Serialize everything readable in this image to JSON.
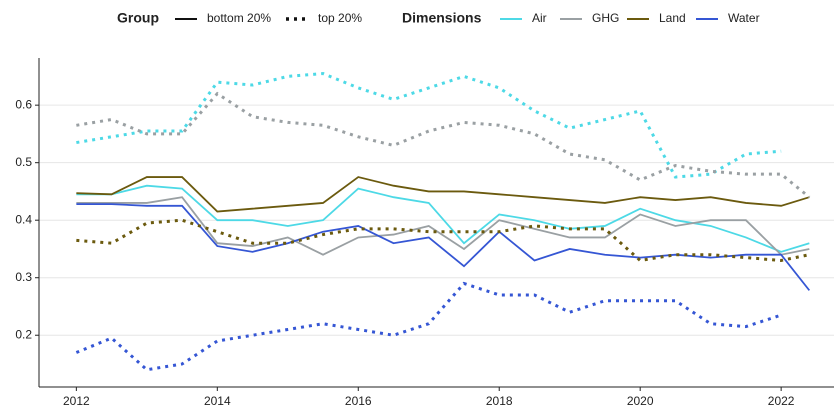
{
  "chart_data": {
    "type": "line",
    "legend_titles": {
      "group": "Group",
      "dimensions": "Dimensions"
    },
    "groups": [
      {
        "name": "bottom 20%",
        "dash": "solid"
      },
      {
        "name": "top 20%",
        "dash": "dotted"
      }
    ],
    "dimensions": [
      {
        "name": "Air",
        "color": "#4dd9e6"
      },
      {
        "name": "GHG",
        "color": "#9aa0a3"
      },
      {
        "name": "Land",
        "color": "#6b5a0e"
      },
      {
        "name": "Water",
        "color": "#3556d4"
      }
    ],
    "x": [
      2012,
      2012.5,
      2013,
      2013.5,
      2014,
      2014.5,
      2015,
      2015.5,
      2016,
      2016.5,
      2017,
      2017.5,
      2018,
      2018.5,
      2019,
      2019.5,
      2020,
      2020.5,
      2021,
      2021.5,
      2022,
      2022.4
    ],
    "series": [
      {
        "dimension": "Air",
        "group": "bottom 20%",
        "values": [
          0.445,
          0.445,
          0.46,
          0.455,
          0.4,
          0.4,
          0.39,
          0.4,
          0.455,
          0.44,
          0.43,
          0.36,
          0.41,
          0.4,
          0.385,
          0.39,
          0.42,
          0.4,
          0.39,
          0.37,
          0.345,
          0.36
        ]
      },
      {
        "dimension": "GHG",
        "group": "bottom 20%",
        "values": [
          0.43,
          0.43,
          0.43,
          0.44,
          0.36,
          0.355,
          0.37,
          0.34,
          0.37,
          0.375,
          0.39,
          0.35,
          0.4,
          0.385,
          0.37,
          0.37,
          0.41,
          0.39,
          0.4,
          0.4,
          0.34,
          0.35
        ]
      },
      {
        "dimension": "Land",
        "group": "bottom 20%",
        "values": [
          0.447,
          0.445,
          0.475,
          0.475,
          0.415,
          0.42,
          0.425,
          0.43,
          0.475,
          0.46,
          0.45,
          0.45,
          0.445,
          0.44,
          0.435,
          0.43,
          0.44,
          0.435,
          0.44,
          0.43,
          0.425,
          0.44
        ]
      },
      {
        "dimension": "Water",
        "group": "bottom 20%",
        "values": [
          0.428,
          0.428,
          0.425,
          0.425,
          0.355,
          0.345,
          0.36,
          0.38,
          0.39,
          0.36,
          0.37,
          0.32,
          0.38,
          0.33,
          0.35,
          0.34,
          0.335,
          0.34,
          0.335,
          0.34,
          0.34,
          0.278
        ]
      },
      {
        "dimension": "Air",
        "group": "top 20%",
        "values": [
          0.535,
          0.545,
          0.555,
          0.555,
          0.64,
          0.635,
          0.65,
          0.655,
          0.63,
          0.61,
          0.63,
          0.65,
          0.63,
          0.59,
          0.56,
          0.575,
          0.59,
          0.475,
          0.48,
          0.515,
          0.52,
          null
        ]
      },
      {
        "dimension": "GHG",
        "group": "top 20%",
        "values": [
          0.565,
          0.575,
          0.55,
          0.55,
          0.62,
          0.58,
          0.57,
          0.565,
          0.545,
          0.53,
          0.555,
          0.57,
          0.565,
          0.55,
          0.515,
          0.505,
          0.47,
          0.495,
          0.485,
          0.48,
          0.48,
          0.44
        ]
      },
      {
        "dimension": "Land",
        "group": "top 20%",
        "values": [
          0.365,
          0.36,
          0.395,
          0.4,
          0.38,
          0.36,
          0.36,
          0.375,
          0.385,
          0.385,
          0.38,
          0.38,
          0.38,
          0.39,
          0.385,
          0.385,
          0.33,
          0.34,
          0.34,
          0.335,
          0.33,
          0.34
        ]
      },
      {
        "dimension": "Water",
        "group": "top 20%",
        "values": [
          0.17,
          0.195,
          0.14,
          0.15,
          0.19,
          0.2,
          0.21,
          0.22,
          0.21,
          0.2,
          0.22,
          0.29,
          0.27,
          0.27,
          0.24,
          0.26,
          0.26,
          0.26,
          0.22,
          0.215,
          0.235,
          null
        ]
      }
    ],
    "xlim": [
      2011.47,
      2022.75
    ],
    "xticks": [
      2012,
      2014,
      2016,
      2018,
      2020,
      2022
    ],
    "ylim": [
      0.11,
      0.682
    ],
    "yticks": [
      0.2,
      0.3,
      0.4,
      0.5,
      0.6
    ],
    "grid": true,
    "legend_position": "top"
  }
}
